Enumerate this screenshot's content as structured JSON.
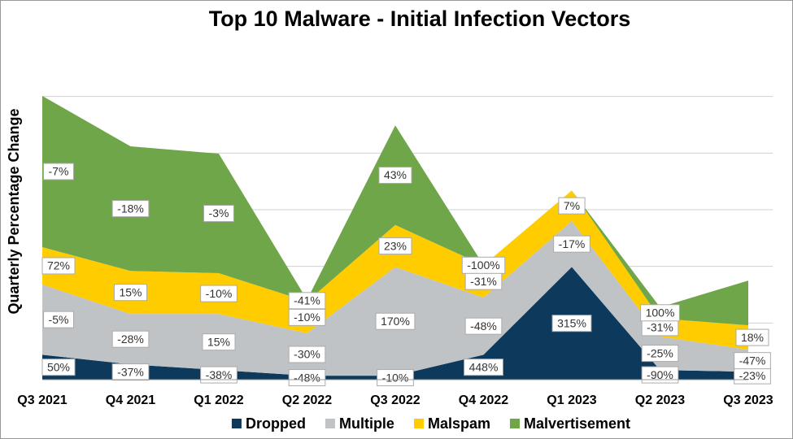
{
  "chart_data": {
    "type": "stacked_area",
    "title": "Top 10 Malware - Initial Infection Vectors",
    "y_label": "Quarterly Percentage Change",
    "categories": [
      "Q3 2021",
      "Q4 2021",
      "Q1 2022",
      "Q2 2022",
      "Q3 2022",
      "Q4 2022",
      "Q1 2023",
      "Q2 2023",
      "Q3 2023"
    ],
    "ylim": [
      0,
      6
    ],
    "yticks": [
      1,
      2,
      3,
      4,
      5
    ],
    "grid": true,
    "legend": "bottom",
    "series": [
      {
        "name": "Dropped",
        "color": "#0d3a5c",
        "values": [
          0.44,
          0.27,
          0.17,
          0.07,
          0.07,
          0.44,
          1.99,
          0.17,
          0.14
        ],
        "labels": [
          "50%",
          "-37%",
          "-38%",
          "-48%",
          "-10%",
          "448%",
          "315%",
          "-90%",
          "-23%"
        ]
      },
      {
        "name": "Multiple",
        "color": "#c0c3c6",
        "values": [
          1.24,
          0.89,
          0.99,
          0.75,
          1.92,
          1.01,
          0.81,
          0.59,
          0.39
        ],
        "labels": [
          "-5%",
          "-28%",
          "15%",
          "-30%",
          "170%",
          "-48%",
          "-17%",
          "-25%",
          "-47%"
        ]
      },
      {
        "name": "Malspam",
        "color": "#ffcc00",
        "values": [
          0.66,
          0.76,
          0.72,
          0.56,
          0.74,
          0.57,
          0.54,
          0.32,
          0.43
        ],
        "labels": [
          "72%",
          "15%",
          "-10%",
          "-10%",
          "23%",
          "-31%",
          "7%",
          "-31%",
          "18%"
        ]
      },
      {
        "name": "Malvertisement",
        "color": "#70a64a",
        "values": [
          2.67,
          2.2,
          2.11,
          0.03,
          1.76,
          0,
          0,
          0.2,
          0.79
        ],
        "labels": [
          "-7%",
          "-18%",
          "-3%",
          "-41%",
          "43%",
          "-100%",
          "",
          "100%",
          ""
        ]
      }
    ]
  }
}
